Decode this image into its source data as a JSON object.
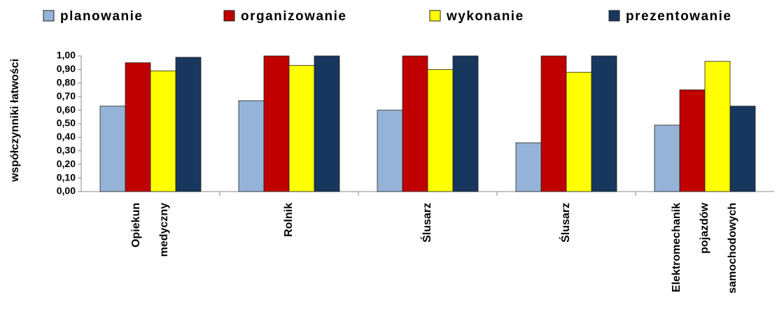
{
  "chart_data": {
    "type": "bar",
    "y_label": "współczynniki łatwości",
    "categories": [
      "Opiekun medyczny",
      "Rolnik",
      "Ślusarz",
      "Ślusarz",
      "Elektromechanik pojazdów samochodowych"
    ],
    "series": [
      {
        "name": "planowanie",
        "color": "#95b3d7",
        "values": [
          0.63,
          0.67,
          0.6,
          0.36,
          0.49
        ]
      },
      {
        "name": "organizowanie",
        "color": "#c00000",
        "values": [
          0.95,
          1.0,
          1.0,
          1.0,
          0.75
        ]
      },
      {
        "name": "wykonanie",
        "color": "#ffff00",
        "values": [
          0.89,
          0.93,
          0.9,
          0.88,
          0.96
        ]
      },
      {
        "name": "prezentowanie",
        "color": "#17375e",
        "values": [
          0.99,
          1.0,
          1.0,
          1.0,
          0.63
        ]
      }
    ],
    "ylim": [
      0,
      1
    ],
    "yticks": [
      {
        "value": 0,
        "label": "0,00"
      },
      {
        "value": 0.1,
        "label": "0,10"
      },
      {
        "value": 0.2,
        "label": "0,20"
      },
      {
        "value": 0.3,
        "label": "0,30"
      },
      {
        "value": 0.4,
        "label": "0,40"
      },
      {
        "value": 0.5,
        "label": "0,50"
      },
      {
        "value": 0.6,
        "label": "0,60"
      },
      {
        "value": 0.7,
        "label": "0,70"
      },
      {
        "value": 0.8,
        "label": "0,80"
      },
      {
        "value": 0.9,
        "label": "0,90"
      },
      {
        "value": 1,
        "label": "1,00"
      }
    ],
    "grid": false,
    "legend": "top"
  }
}
